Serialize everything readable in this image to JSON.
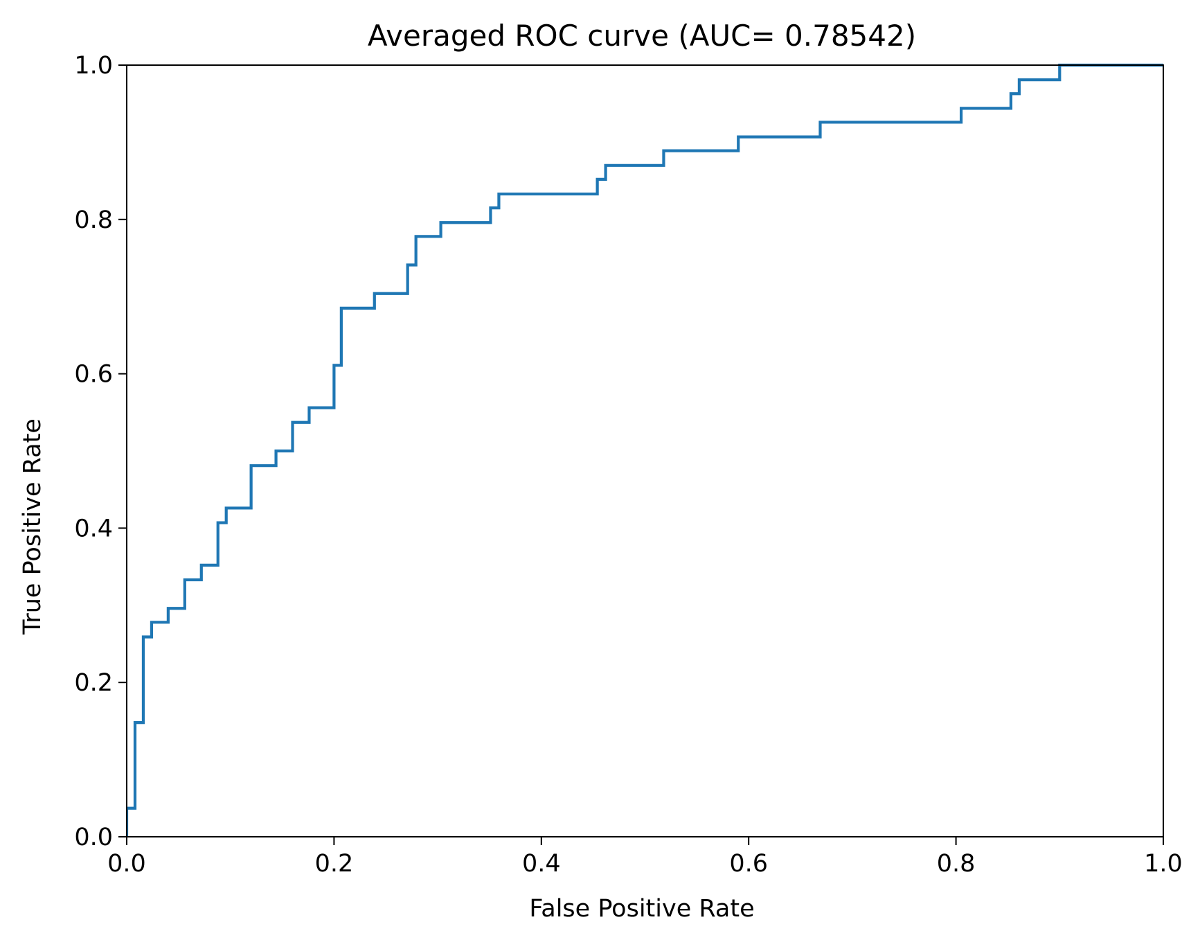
{
  "chart_data": {
    "type": "line",
    "title": "Averaged ROC curve (AUC= 0.78542)",
    "xlabel": "False Positive Rate",
    "ylabel": "True Positive Rate",
    "xlim": [
      0.0,
      1.0
    ],
    "ylim": [
      0.0,
      1.0
    ],
    "xticks": [
      "0.0",
      "0.2",
      "0.4",
      "0.6",
      "0.8",
      "1.0"
    ],
    "yticks": [
      "0.0",
      "0.2",
      "0.4",
      "0.6",
      "0.8",
      "1.0"
    ],
    "grid": false,
    "legend": "none",
    "line_style": "step",
    "series": [
      {
        "color": "#1f77b4",
        "x": [
          0.0,
          0.0,
          0.008,
          0.008,
          0.016,
          0.016,
          0.024,
          0.024,
          0.04,
          0.04,
          0.056,
          0.056,
          0.072,
          0.072,
          0.088,
          0.088,
          0.096,
          0.096,
          0.12,
          0.12,
          0.144,
          0.144,
          0.16,
          0.16,
          0.176,
          0.176,
          0.2,
          0.2,
          0.207,
          0.207,
          0.239,
          0.239,
          0.271,
          0.271,
          0.279,
          0.279,
          0.303,
          0.303,
          0.351,
          0.351,
          0.359,
          0.359,
          0.454,
          0.454,
          0.462,
          0.462,
          0.518,
          0.518,
          0.59,
          0.59,
          0.669,
          0.669,
          0.805,
          0.805,
          0.853,
          0.853,
          0.861,
          0.861,
          0.9,
          0.9,
          1.0
        ],
        "y": [
          0.0,
          0.037,
          0.037,
          0.148,
          0.148,
          0.259,
          0.259,
          0.278,
          0.278,
          0.296,
          0.296,
          0.333,
          0.333,
          0.352,
          0.352,
          0.407,
          0.407,
          0.426,
          0.426,
          0.481,
          0.481,
          0.5,
          0.5,
          0.537,
          0.537,
          0.556,
          0.556,
          0.611,
          0.611,
          0.685,
          0.685,
          0.704,
          0.704,
          0.741,
          0.741,
          0.778,
          0.778,
          0.796,
          0.796,
          0.815,
          0.815,
          0.833,
          0.833,
          0.852,
          0.852,
          0.87,
          0.87,
          0.889,
          0.889,
          0.907,
          0.907,
          0.926,
          0.926,
          0.944,
          0.944,
          0.963,
          0.963,
          0.981,
          0.981,
          1.0,
          1.0
        ]
      }
    ]
  }
}
